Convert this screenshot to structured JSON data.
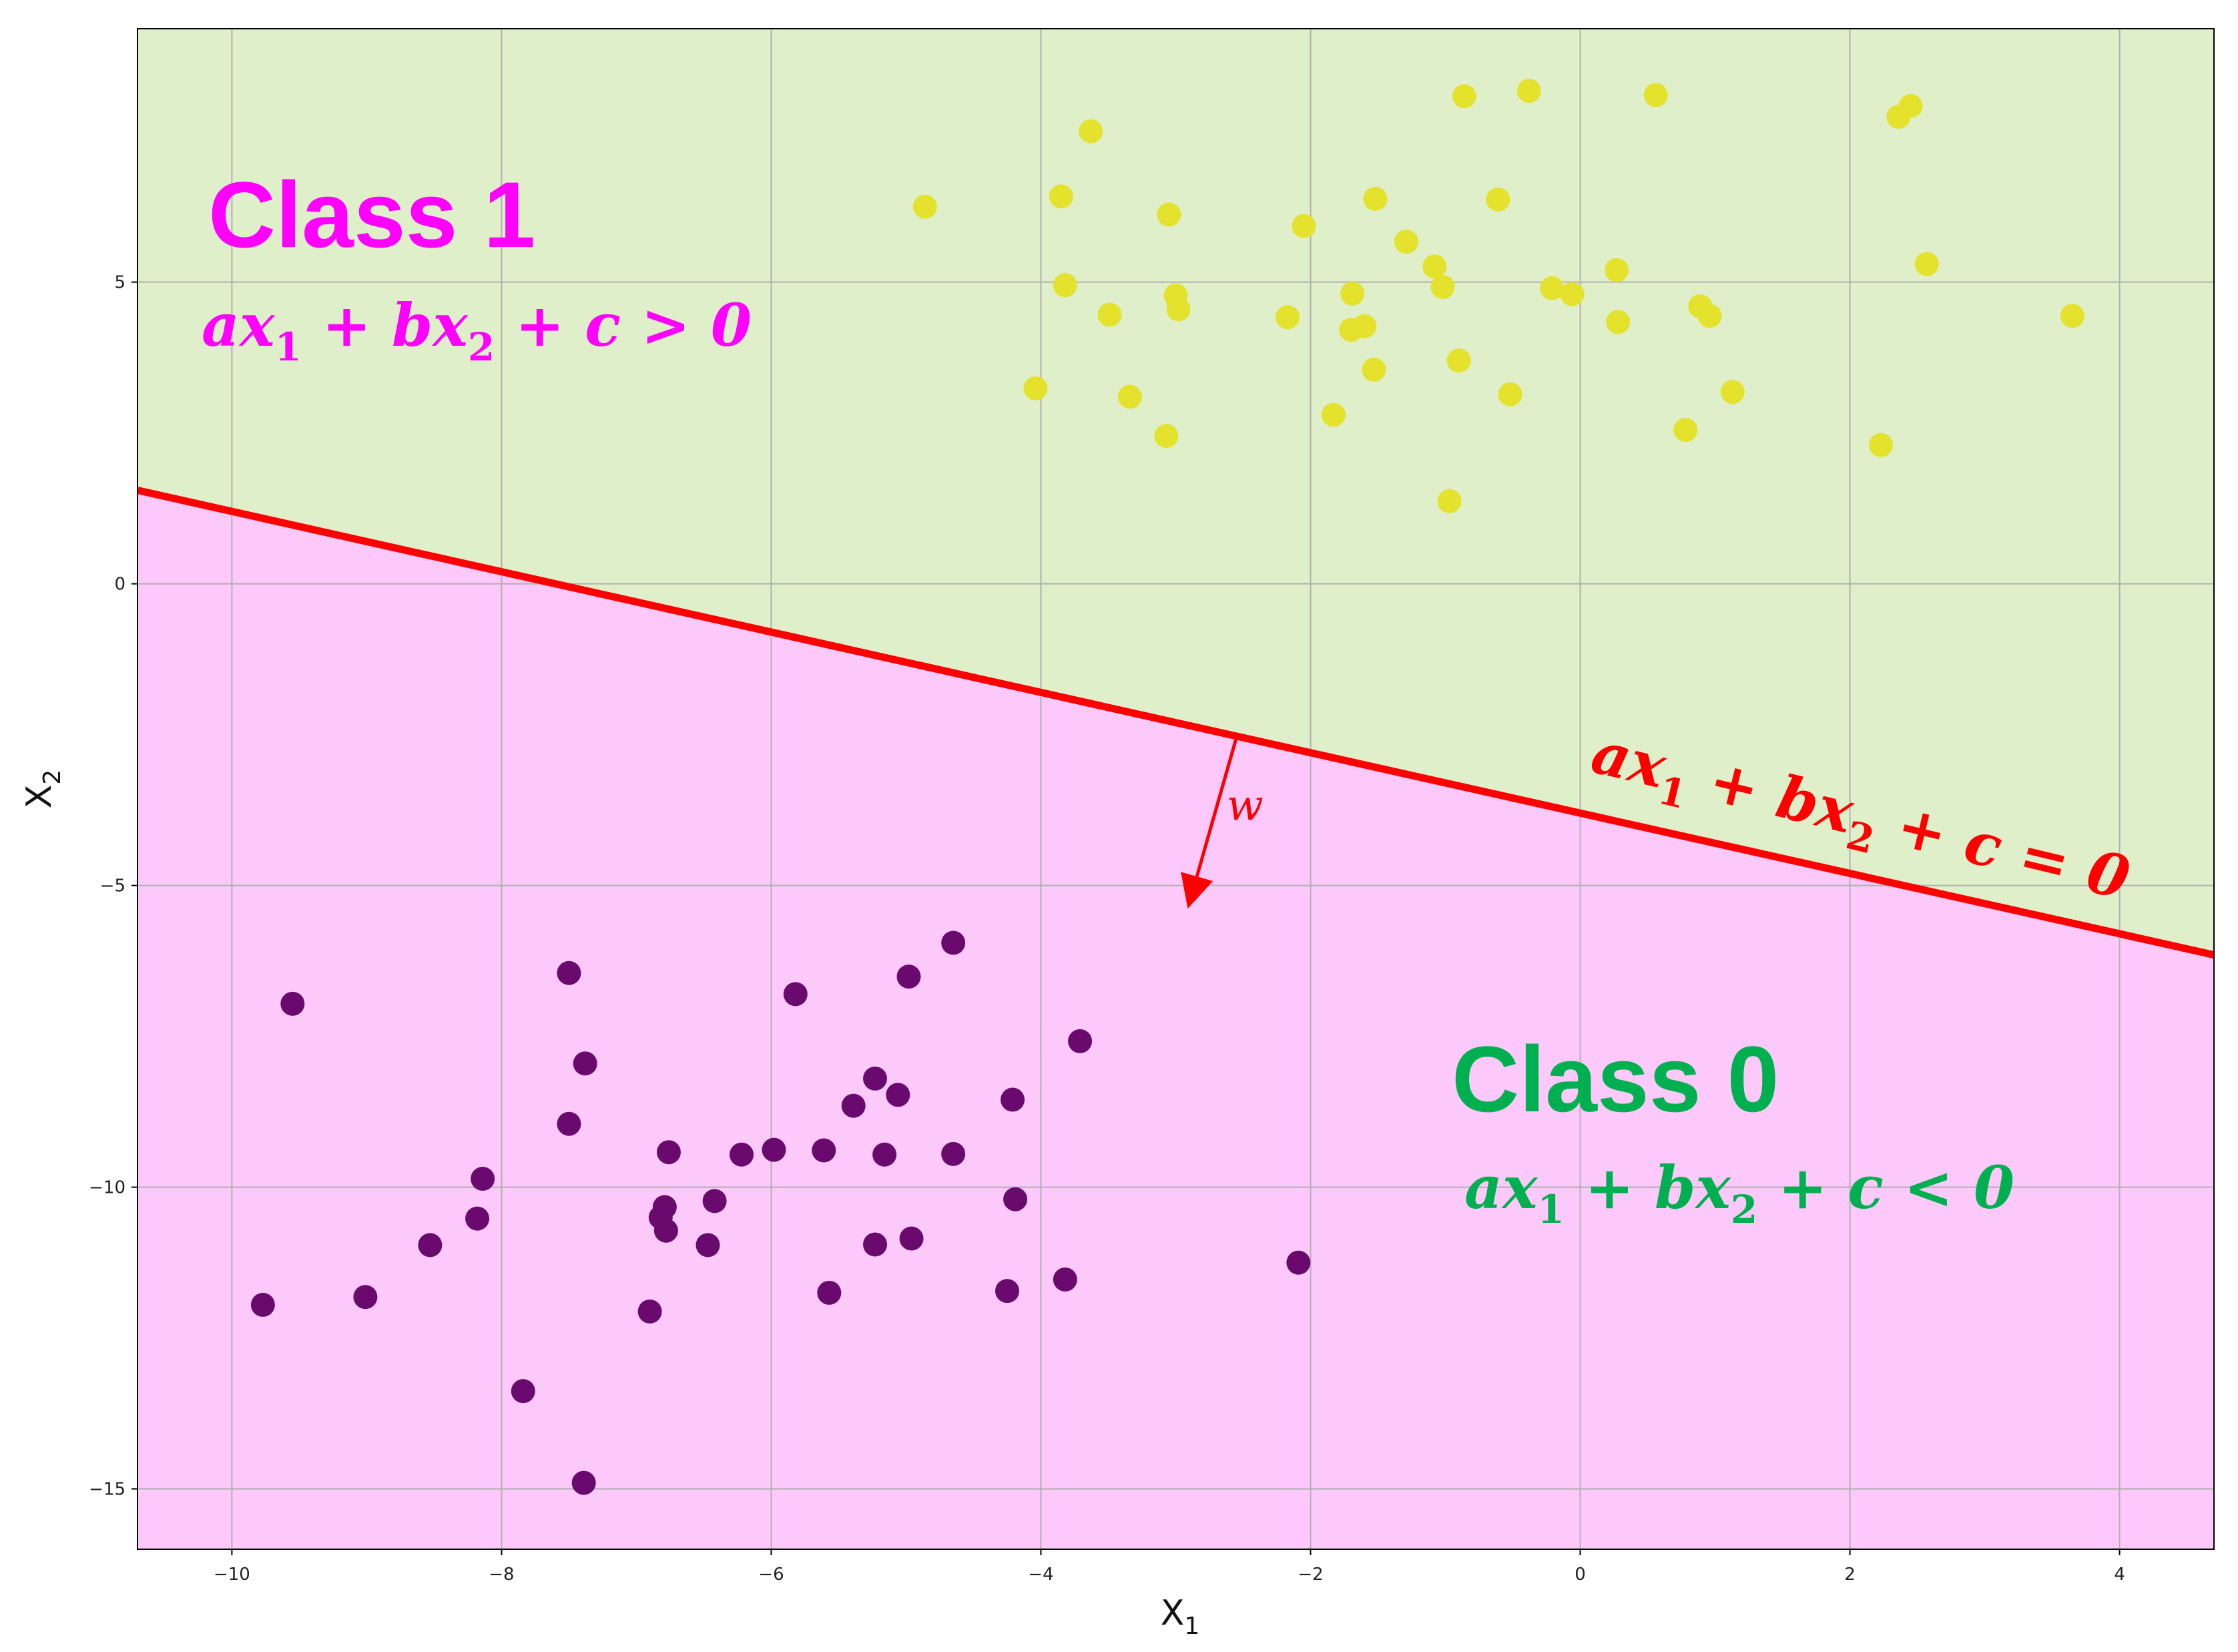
{
  "chart_data": {
    "type": "scatter",
    "xlabel": "X",
    "xlabel_sub": "1",
    "ylabel": "X",
    "ylabel_sub": "2",
    "xlim": [
      -10.7,
      4.7
    ],
    "ylim": [
      -16.0,
      9.2
    ],
    "xticks": [
      -10,
      -8,
      -6,
      -4,
      -2,
      0,
      2,
      4
    ],
    "yticks": [
      5,
      0,
      -5,
      -10,
      -15
    ],
    "grid": true,
    "decision_boundary": {
      "slope": -0.5,
      "intercept": -3.8,
      "color": "#ff0000"
    },
    "regions": [
      {
        "name": "Class 1",
        "side": "above",
        "color": "#dfefca"
      },
      {
        "name": "Class 0",
        "side": "below",
        "color": "#fdc9fb"
      }
    ],
    "series": [
      {
        "name": "Class 1",
        "color": "#e4e22c",
        "points": [
          [
            -4.86,
            6.25
          ],
          [
            -3.85,
            6.42
          ],
          [
            -3.82,
            4.95
          ],
          [
            -3.63,
            7.5
          ],
          [
            -3.49,
            4.46
          ],
          [
            -4.04,
            3.24
          ],
          [
            -3.34,
            3.1
          ],
          [
            -3.07,
            2.45
          ],
          [
            -3.05,
            6.12
          ],
          [
            -3.0,
            4.78
          ],
          [
            -2.98,
            4.55
          ],
          [
            -2.17,
            4.42
          ],
          [
            -2.05,
            5.93
          ],
          [
            -1.83,
            2.8
          ],
          [
            -1.69,
            4.81
          ],
          [
            -1.7,
            4.21
          ],
          [
            -1.6,
            4.27
          ],
          [
            -1.53,
            3.55
          ],
          [
            -1.52,
            6.38
          ],
          [
            -1.29,
            5.67
          ],
          [
            -1.08,
            5.26
          ],
          [
            -1.02,
            4.92
          ],
          [
            -0.97,
            1.37
          ],
          [
            -0.9,
            3.7
          ],
          [
            -0.86,
            8.08
          ],
          [
            -0.61,
            6.37
          ],
          [
            -0.52,
            3.14
          ],
          [
            -0.38,
            8.17
          ],
          [
            -0.21,
            4.9
          ],
          [
            -0.06,
            4.8
          ],
          [
            0.27,
            5.2
          ],
          [
            0.28,
            4.34
          ],
          [
            0.56,
            8.1
          ],
          [
            0.78,
            2.55
          ],
          [
            0.89,
            4.6
          ],
          [
            0.96,
            4.44
          ],
          [
            1.13,
            3.18
          ],
          [
            2.23,
            2.3
          ],
          [
            2.36,
            7.74
          ],
          [
            2.45,
            7.92
          ],
          [
            2.57,
            5.3
          ],
          [
            3.65,
            4.44
          ]
        ]
      },
      {
        "name": "Class 0",
        "color": "#6b0a6e",
        "points": [
          [
            -9.55,
            -6.96
          ],
          [
            -9.77,
            -11.95
          ],
          [
            -9.01,
            -11.82
          ],
          [
            -8.53,
            -10.96
          ],
          [
            -8.18,
            -10.52
          ],
          [
            -8.14,
            -9.86
          ],
          [
            -7.84,
            -13.38
          ],
          [
            -7.5,
            -6.45
          ],
          [
            -7.5,
            -8.95
          ],
          [
            -7.38,
            -7.95
          ],
          [
            -7.39,
            -14.9
          ],
          [
            -6.9,
            -12.06
          ],
          [
            -6.82,
            -10.5
          ],
          [
            -6.79,
            -10.33
          ],
          [
            -6.78,
            -10.72
          ],
          [
            -6.76,
            -9.42
          ],
          [
            -6.47,
            -10.96
          ],
          [
            -6.42,
            -10.23
          ],
          [
            -6.22,
            -9.46
          ],
          [
            -5.98,
            -9.38
          ],
          [
            -5.82,
            -6.8
          ],
          [
            -5.61,
            -9.39
          ],
          [
            -5.57,
            -11.75
          ],
          [
            -5.39,
            -8.65
          ],
          [
            -5.23,
            -8.2
          ],
          [
            -5.23,
            -10.95
          ],
          [
            -5.16,
            -9.46
          ],
          [
            -5.06,
            -8.47
          ],
          [
            -4.98,
            -6.51
          ],
          [
            -4.96,
            -10.85
          ],
          [
            -4.65,
            -5.95
          ],
          [
            -4.65,
            -9.45
          ],
          [
            -4.25,
            -11.72
          ],
          [
            -4.21,
            -8.55
          ],
          [
            -4.19,
            -10.2
          ],
          [
            -3.82,
            -11.53
          ],
          [
            -3.71,
            -7.58
          ],
          [
            -2.09,
            -11.25
          ]
        ]
      }
    ]
  },
  "labels": {
    "class1_title": "Class 1",
    "class1_eq": {
      "a": "ax",
      "sub1": "1",
      "mid": " + bx",
      "sub2": "2",
      "tail": " + c > 0"
    },
    "class0_title": "Class 0",
    "class0_eq": {
      "a": "ax",
      "sub1": "1",
      "mid": " + bx",
      "sub2": "2",
      "tail": " + c < 0"
    },
    "boundary_eq": {
      "a": "ax",
      "sub1": "1",
      "mid": " + bx",
      "sub2": "2",
      "tail": " + c = 0"
    },
    "normal_label": "w"
  },
  "colors": {
    "class1_text": "#ff00ff",
    "class0_text": "#00b050",
    "boundary": "#ff0000",
    "grid": "#b0b0b0"
  }
}
